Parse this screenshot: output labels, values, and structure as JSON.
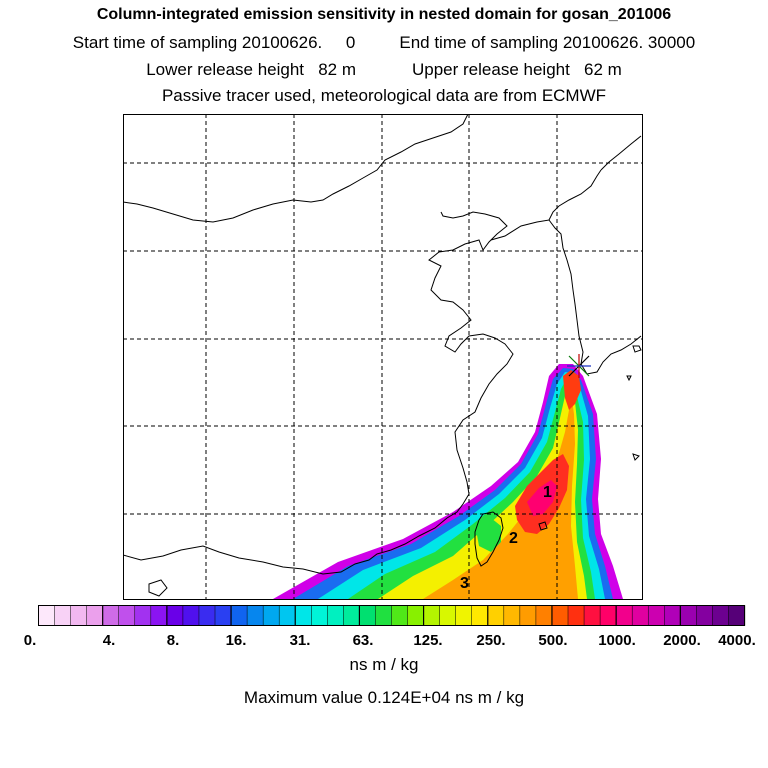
{
  "header": {
    "title": "Column-integrated emission sensitivity in nested domain for gosan_201006",
    "start_label": "Start time of sampling 20100626.     0",
    "end_label": "End time of sampling 20100626. 30000",
    "lower_label": "Lower release height   82 m",
    "upper_label": "Upper release height   62 m",
    "tracer_note": "Passive tracer used, meteorological data are from ECMWF"
  },
  "map": {
    "cluster_labels": [
      "1",
      "2",
      "3"
    ],
    "receptor_marker": "receptor-star-icon"
  },
  "colorbar": {
    "tick_labels": [
      "0.",
      "4.",
      "8.",
      "16.",
      "31.",
      "63.",
      "125.",
      "250.",
      "500.",
      "1000.",
      "2000.",
      "4000."
    ],
    "colors": [
      "#fde8fb",
      "#f8d2f6",
      "#f2b8f0",
      "#eba0ec",
      "#cf6be8",
      "#c050ec",
      "#a232f0",
      "#8b14f2",
      "#6a00e8",
      "#5010ee",
      "#3a2cf0",
      "#2a40f2",
      "#1064f0",
      "#0686ee",
      "#00a8f0",
      "#00c6f0",
      "#00e6e8",
      "#00f4d8",
      "#00f0c0",
      "#00ec9c",
      "#00e070",
      "#20e040",
      "#50e818",
      "#88f000",
      "#b4f400",
      "#d8f800",
      "#f0f400",
      "#ffe800",
      "#ffd000",
      "#ffb800",
      "#ff9c00",
      "#ff8000",
      "#ff5c00",
      "#ff3010",
      "#ff1040",
      "#ff0068",
      "#f2008c",
      "#e000a0",
      "#cc00b0",
      "#b000b8",
      "#9a00b0",
      "#8400a0",
      "#6c0090",
      "#560078"
    ]
  },
  "unit_label": "ns m / kg",
  "max_value_label": "Maximum value  0.124E+04 ns m / kg"
}
